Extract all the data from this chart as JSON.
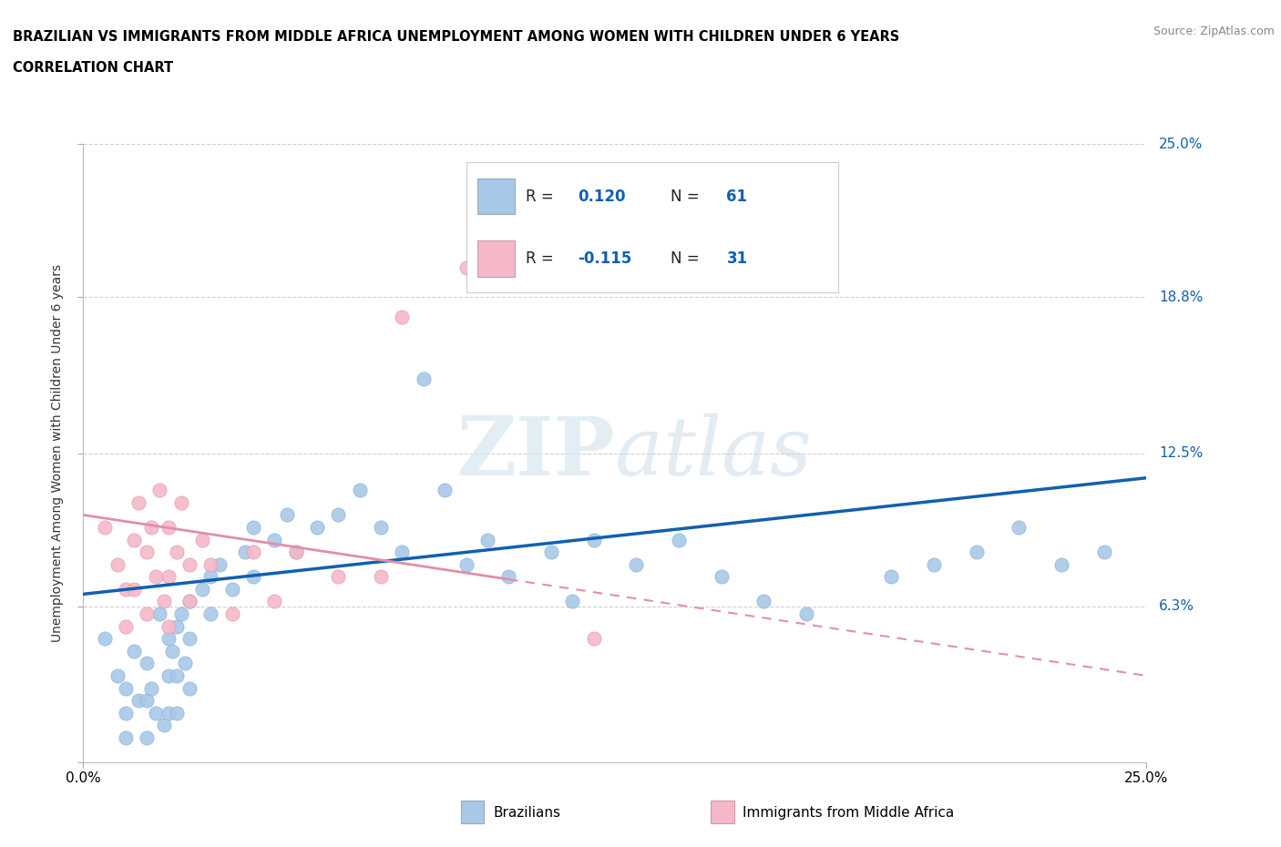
{
  "title_line1": "BRAZILIAN VS IMMIGRANTS FROM MIDDLE AFRICA UNEMPLOYMENT AMONG WOMEN WITH CHILDREN UNDER 6 YEARS",
  "title_line2": "CORRELATION CHART",
  "source": "Source: ZipAtlas.com",
  "xlim": [
    0.0,
    0.25
  ],
  "ylim": [
    0.0,
    0.25
  ],
  "ytick_vals": [
    0.0,
    0.063,
    0.125,
    0.188,
    0.25
  ],
  "ytick_labels": [
    "",
    "6.3%",
    "12.5%",
    "18.8%",
    "25.0%"
  ],
  "right_ytick_labels": [
    "6.3%",
    "12.5%",
    "18.8%",
    "25.0%"
  ],
  "right_ytick_vals": [
    0.063,
    0.125,
    0.188,
    0.25
  ],
  "xtick_vals": [
    0.0,
    0.25
  ],
  "xtick_labels": [
    "0.0%",
    "25.0%"
  ],
  "legend_r1": "R = ",
  "legend_v1": "0.120",
  "legend_n1_label": "N = ",
  "legend_n1": "61",
  "legend_r2": "R = ",
  "legend_v2": "-0.115",
  "legend_n2_label": "N = ",
  "legend_n2": "31",
  "legend_label1": "Brazilians",
  "legend_label2": "Immigrants from Middle Africa",
  "blue_color": "#a8c8e8",
  "pink_color": "#f4b8c8",
  "trend_blue": "#1060b0",
  "trend_pink": "#e090a8",
  "text_blue": "#1060b0",
  "watermark_text": "ZIPatlas",
  "background_color": "#ffffff",
  "grid_color": "#d0d0d0",
  "blue_scatter_x": [
    0.005,
    0.008,
    0.01,
    0.01,
    0.01,
    0.012,
    0.013,
    0.015,
    0.015,
    0.015,
    0.016,
    0.017,
    0.018,
    0.019,
    0.02,
    0.02,
    0.02,
    0.021,
    0.022,
    0.022,
    0.022,
    0.023,
    0.024,
    0.025,
    0.025,
    0.025,
    0.028,
    0.03,
    0.03,
    0.032,
    0.035,
    0.038,
    0.04,
    0.04,
    0.045,
    0.048,
    0.05,
    0.055,
    0.06,
    0.065,
    0.07,
    0.075,
    0.08,
    0.085,
    0.09,
    0.095,
    0.1,
    0.11,
    0.115,
    0.12,
    0.13,
    0.14,
    0.15,
    0.16,
    0.17,
    0.19,
    0.2,
    0.21,
    0.22,
    0.23,
    0.24
  ],
  "blue_scatter_y": [
    0.05,
    0.035,
    0.03,
    0.02,
    0.01,
    0.045,
    0.025,
    0.04,
    0.025,
    0.01,
    0.03,
    0.02,
    0.06,
    0.015,
    0.05,
    0.035,
    0.02,
    0.045,
    0.055,
    0.035,
    0.02,
    0.06,
    0.04,
    0.065,
    0.05,
    0.03,
    0.07,
    0.075,
    0.06,
    0.08,
    0.07,
    0.085,
    0.095,
    0.075,
    0.09,
    0.1,
    0.085,
    0.095,
    0.1,
    0.11,
    0.095,
    0.085,
    0.155,
    0.11,
    0.08,
    0.09,
    0.075,
    0.085,
    0.065,
    0.09,
    0.08,
    0.09,
    0.075,
    0.065,
    0.06,
    0.075,
    0.08,
    0.085,
    0.095,
    0.08,
    0.085
  ],
  "pink_scatter_x": [
    0.005,
    0.008,
    0.01,
    0.01,
    0.012,
    0.012,
    0.013,
    0.015,
    0.015,
    0.016,
    0.017,
    0.018,
    0.019,
    0.02,
    0.02,
    0.02,
    0.022,
    0.023,
    0.025,
    0.025,
    0.028,
    0.03,
    0.035,
    0.04,
    0.045,
    0.05,
    0.06,
    0.07,
    0.075,
    0.09,
    0.12
  ],
  "pink_scatter_y": [
    0.095,
    0.08,
    0.07,
    0.055,
    0.09,
    0.07,
    0.105,
    0.085,
    0.06,
    0.095,
    0.075,
    0.11,
    0.065,
    0.095,
    0.075,
    0.055,
    0.085,
    0.105,
    0.08,
    0.065,
    0.09,
    0.08,
    0.06,
    0.085,
    0.065,
    0.085,
    0.075,
    0.075,
    0.18,
    0.2,
    0.05
  ],
  "blue_trend_x0": 0.0,
  "blue_trend_y0": 0.068,
  "blue_trend_x1": 0.25,
  "blue_trend_y1": 0.115,
  "pink_trend_x0": 0.0,
  "pink_trend_y0": 0.1,
  "pink_trend_x1": 0.25,
  "pink_trend_y1": 0.035
}
